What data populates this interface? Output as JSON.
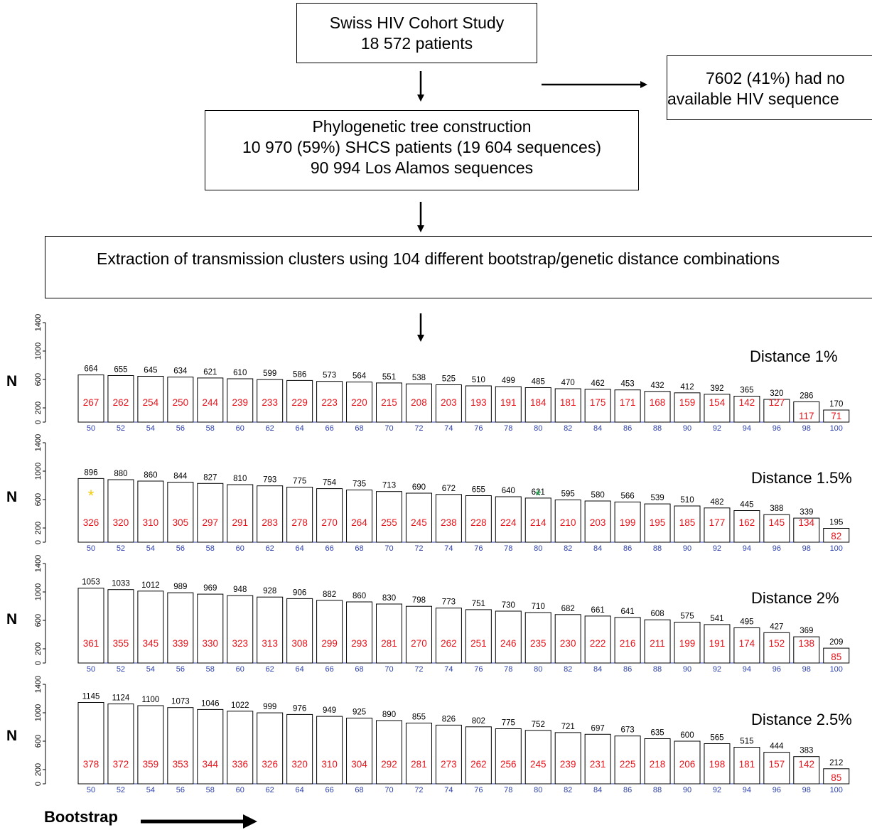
{
  "flow": {
    "box1": [
      "Swiss HIV Cohort Study",
      "18 572 patients"
    ],
    "box2": [
      "Phylogenetic tree construction",
      "10 970 (59%) SHCS patients (19 604 sequences)",
      "90 994 Los Alamos sequences"
    ],
    "box3": [
      "Extraction of transmission clusters using 104 different bootstrap/genetic distance combinations"
    ],
    "box4": [
      "7602 (41%) had no",
      "available HIV sequence"
    ]
  },
  "y_axis_label": "N",
  "x_axis_label": "Bootstrap",
  "colors": {
    "top_value": "#000000",
    "bottom_value": "#e8141b",
    "x_tick": "#2b3fa8",
    "axis_line": "#2b3fa8",
    "star_yellow": "#f5c900",
    "star_green": "#1ea14a"
  },
  "chart_data": [
    {
      "type": "bar",
      "title": "Distance 1%",
      "ylabel": "N",
      "xlabel": "Bootstrap",
      "ylim": [
        0,
        1400
      ],
      "y_ticks": [
        "0",
        "200",
        "600",
        "1000",
        "1400"
      ],
      "categories": [
        "50",
        "52",
        "54",
        "56",
        "58",
        "60",
        "62",
        "64",
        "66",
        "68",
        "70",
        "72",
        "74",
        "76",
        "78",
        "80",
        "82",
        "84",
        "86",
        "88",
        "90",
        "92",
        "94",
        "96",
        "98",
        "100"
      ],
      "values": [
        664,
        655,
        645,
        634,
        621,
        610,
        599,
        586,
        573,
        564,
        551,
        538,
        525,
        510,
        499,
        485,
        470,
        462,
        453,
        432,
        412,
        392,
        365,
        320,
        286,
        170
      ],
      "inner_values": [
        267,
        262,
        254,
        250,
        244,
        239,
        233,
        229,
        223,
        220,
        215,
        208,
        203,
        193,
        191,
        184,
        181,
        175,
        171,
        168,
        159,
        154,
        142,
        127,
        117,
        71
      ],
      "markers": []
    },
    {
      "type": "bar",
      "title": "Distance 1.5%",
      "ylabel": "N",
      "xlabel": "Bootstrap",
      "ylim": [
        0,
        1400
      ],
      "y_ticks": [
        "0",
        "200",
        "600",
        "1000",
        "1400"
      ],
      "categories": [
        "50",
        "52",
        "54",
        "56",
        "58",
        "60",
        "62",
        "64",
        "66",
        "68",
        "70",
        "72",
        "74",
        "76",
        "78",
        "80",
        "82",
        "84",
        "86",
        "88",
        "90",
        "92",
        "94",
        "96",
        "98",
        "100"
      ],
      "values": [
        896,
        880,
        860,
        844,
        827,
        810,
        793,
        775,
        754,
        735,
        713,
        690,
        672,
        655,
        640,
        621,
        595,
        580,
        566,
        539,
        510,
        482,
        445,
        388,
        339,
        195
      ],
      "inner_values": [
        326,
        320,
        310,
        305,
        297,
        291,
        283,
        278,
        270,
        264,
        255,
        245,
        238,
        228,
        224,
        214,
        210,
        203,
        199,
        195,
        185,
        177,
        162,
        145,
        134,
        82
      ],
      "markers": [
        {
          "category": "50",
          "symbol": "*",
          "color": "#f5c900"
        },
        {
          "category": "80",
          "symbol": "*",
          "color": "#1ea14a"
        }
      ]
    },
    {
      "type": "bar",
      "title": "Distance 2%",
      "ylabel": "N",
      "xlabel": "Bootstrap",
      "ylim": [
        0,
        1400
      ],
      "y_ticks": [
        "0",
        "200",
        "600",
        "1000",
        "1400"
      ],
      "categories": [
        "50",
        "52",
        "54",
        "56",
        "58",
        "60",
        "62",
        "64",
        "66",
        "68",
        "70",
        "72",
        "74",
        "76",
        "78",
        "80",
        "82",
        "84",
        "86",
        "88",
        "90",
        "92",
        "94",
        "96",
        "98",
        "100"
      ],
      "values": [
        1053,
        1033,
        1012,
        989,
        969,
        948,
        928,
        906,
        882,
        860,
        830,
        798,
        773,
        751,
        730,
        710,
        682,
        661,
        641,
        608,
        575,
        541,
        495,
        427,
        369,
        209
      ],
      "inner_values": [
        361,
        355,
        345,
        339,
        330,
        323,
        313,
        308,
        299,
        293,
        281,
        270,
        262,
        251,
        246,
        235,
        230,
        222,
        216,
        211,
        199,
        191,
        174,
        152,
        138,
        85
      ],
      "markers": []
    },
    {
      "type": "bar",
      "title": "Distance 2.5%",
      "ylabel": "N",
      "xlabel": "Bootstrap",
      "ylim": [
        0,
        1400
      ],
      "y_ticks": [
        "0",
        "200",
        "600",
        "1000",
        "1400"
      ],
      "categories": [
        "50",
        "52",
        "54",
        "56",
        "58",
        "60",
        "62",
        "64",
        "66",
        "68",
        "70",
        "72",
        "74",
        "76",
        "78",
        "80",
        "82",
        "84",
        "86",
        "88",
        "90",
        "92",
        "94",
        "96",
        "98",
        "100"
      ],
      "values": [
        1145,
        1124,
        1100,
        1073,
        1046,
        1022,
        999,
        976,
        949,
        925,
        890,
        855,
        826,
        802,
        775,
        752,
        721,
        697,
        673,
        635,
        600,
        565,
        515,
        444,
        383,
        212
      ],
      "inner_values": [
        378,
        372,
        359,
        353,
        344,
        336,
        326,
        320,
        310,
        304,
        292,
        281,
        273,
        262,
        256,
        245,
        239,
        231,
        225,
        218,
        206,
        198,
        181,
        157,
        142,
        85
      ],
      "markers": []
    }
  ]
}
